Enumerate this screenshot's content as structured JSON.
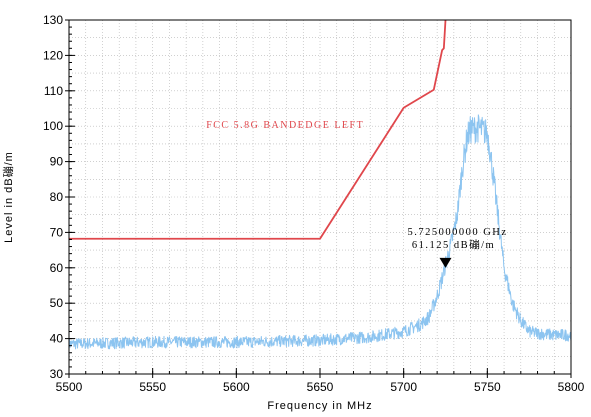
{
  "chart_data": {
    "type": "line",
    "xlabel": "Frequency in MHz",
    "ylabel": "Level in dB磞/m",
    "xlim": [
      5500,
      5800
    ],
    "ylim": [
      30,
      130
    ],
    "xticks": [
      5500,
      5550,
      5600,
      5650,
      5700,
      5750,
      5800
    ],
    "yticks": [
      30,
      40,
      50,
      60,
      70,
      80,
      90,
      100,
      110,
      120,
      130
    ],
    "grid": true,
    "series": [
      {
        "name": "FCC 5.8G BANDEDGE LEFT",
        "color": "#e0474c",
        "x": [
          5500,
          5650,
          5700,
          5718,
          5723,
          5724,
          5725
        ],
        "y": [
          68.2,
          68.2,
          105.2,
          110.3,
          121.5,
          122,
          130
        ]
      },
      {
        "color": "#8cc4f0",
        "x": [
          5500,
          5550,
          5600,
          5650,
          5680,
          5700,
          5710,
          5715,
          5720,
          5723,
          5725,
          5728,
          5732,
          5735,
          5738,
          5740,
          5745,
          5750,
          5752,
          5755,
          5758,
          5760,
          5765,
          5770,
          5775,
          5780,
          5790,
          5800
        ],
        "y": [
          38.5,
          39,
          39,
          39.5,
          40.5,
          42,
          44,
          46,
          52,
          57,
          61.1,
          66,
          75,
          88,
          97,
          99,
          99.5,
          98,
          92,
          80,
          68,
          60,
          50,
          45,
          42,
          41.5,
          41,
          41
        ]
      }
    ],
    "annotations": {
      "limit_label": "FCC 5.8G BANDEDGE LEFT",
      "marker_freq": "5.725000000 GHz",
      "marker_level": "61.125 dB磞/m",
      "marker": {
        "x": 5725,
        "y": 61.1
      }
    }
  }
}
